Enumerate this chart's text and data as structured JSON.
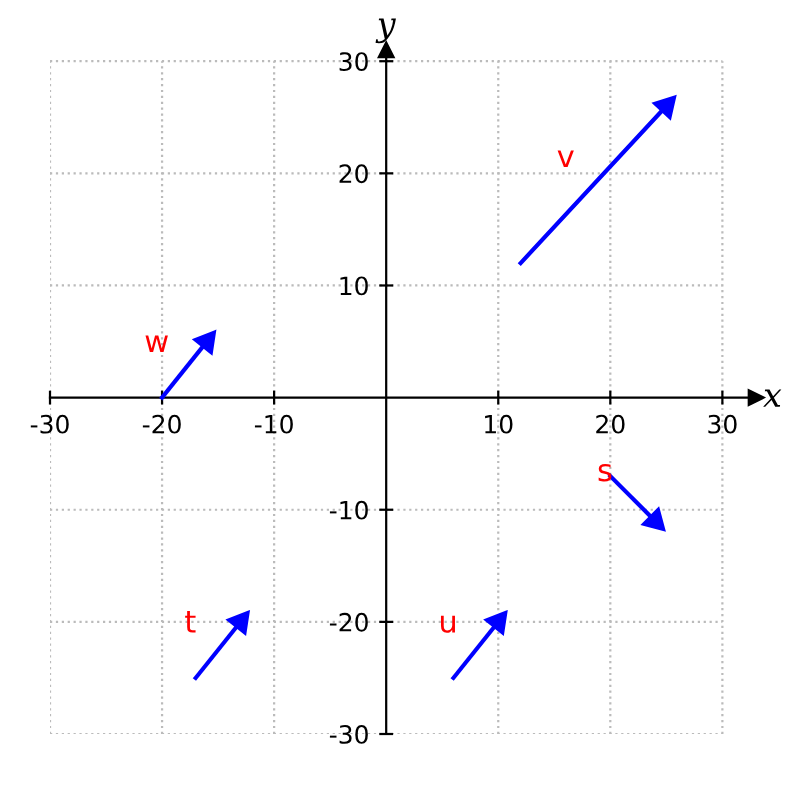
{
  "chart_data": {
    "type": "line",
    "xlabel": "x",
    "ylabel": "y",
    "series": [
      {
        "name": "v",
        "color": "#0000ff",
        "x": [
          12,
          25
        ],
        "values": [
          12,
          26
        ]
      },
      {
        "name": "w",
        "color": "#0000ff",
        "x": [
          -20,
          -16
        ],
        "values": [
          0,
          5
        ]
      },
      {
        "name": "s",
        "color": "#0000ff",
        "x": [
          20,
          24
        ],
        "values": [
          -7,
          -11
        ]
      },
      {
        "name": "t",
        "color": "#0000ff",
        "x": [
          -17,
          -13
        ],
        "values": [
          -25,
          -20
        ]
      },
      {
        "name": "u",
        "color": "#0000ff",
        "x": [
          6,
          10
        ],
        "values": [
          -25,
          -20
        ]
      }
    ],
    "xlim": [
      -30,
      33
    ],
    "ylim": [
      -30,
      31
    ],
    "xticks": [
      -30,
      -20,
      -10,
      10,
      20,
      30
    ],
    "yticks": [
      -30,
      -20,
      -10,
      10,
      20,
      30
    ],
    "grid": true,
    "marker": "triangle",
    "line_style": "solid"
  }
}
